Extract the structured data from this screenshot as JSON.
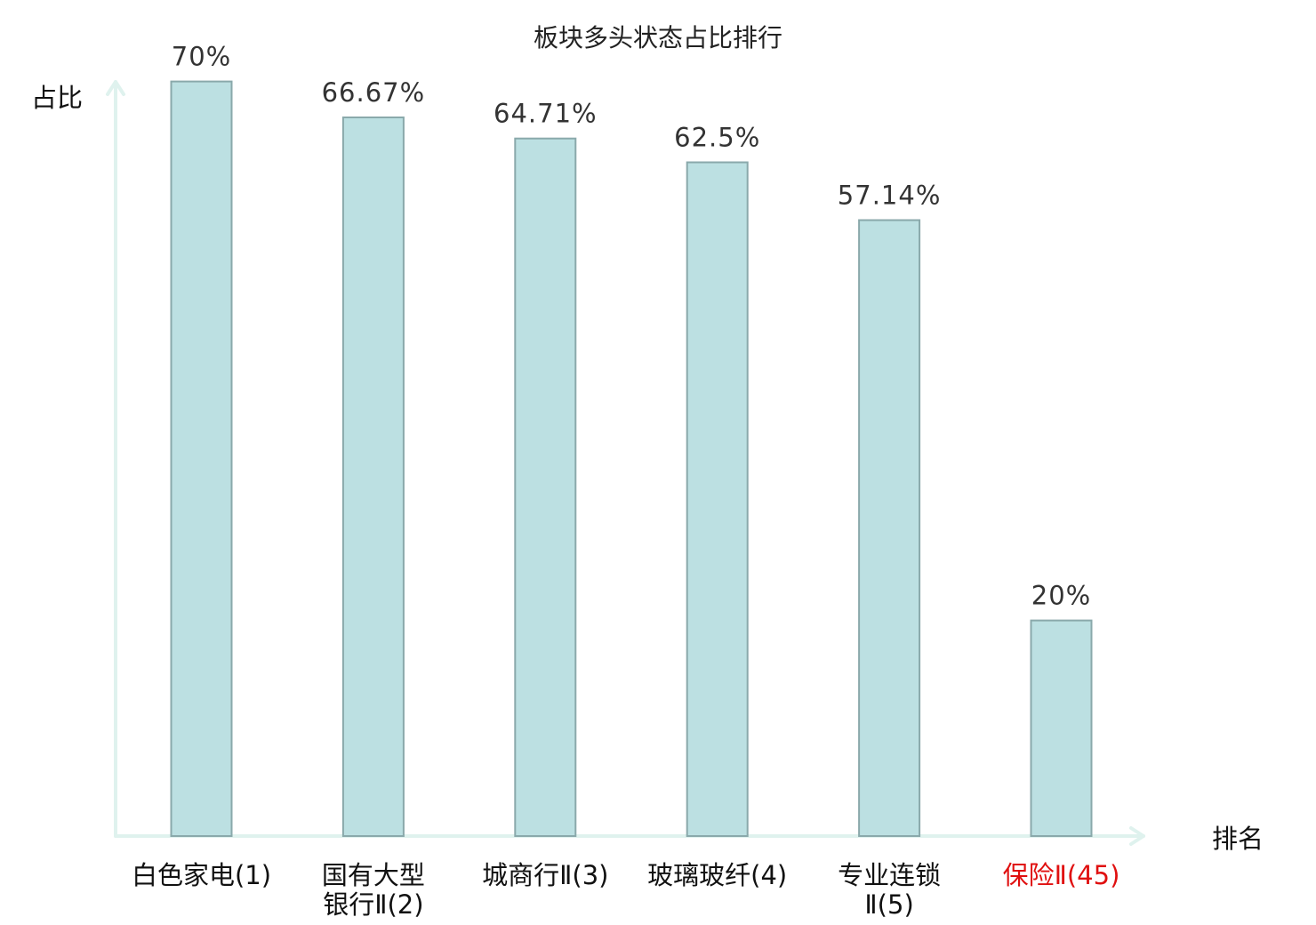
{
  "chart_data": {
    "type": "bar",
    "title": "板块多头状态占比排行",
    "ylabel": "占比",
    "xlabel": "排名",
    "ylim": [
      0,
      100
    ],
    "categories": [
      {
        "lines": [
          "白色家电(1)"
        ],
        "highlight": false
      },
      {
        "lines": [
          "国有大型",
          "银行Ⅱ(2)"
        ],
        "highlight": false
      },
      {
        "lines": [
          "城商行Ⅱ(3)"
        ],
        "highlight": false
      },
      {
        "lines": [
          "玻璃玻纤(4)"
        ],
        "highlight": false
      },
      {
        "lines": [
          "专业连锁",
          "Ⅱ(5)"
        ],
        "highlight": false
      },
      {
        "lines": [
          "保险Ⅱ(45)"
        ],
        "highlight": true
      }
    ],
    "values": [
      70,
      66.67,
      64.71,
      62.5,
      57.14,
      20
    ],
    "value_labels": [
      "70%",
      "66.67%",
      "64.71%",
      "62.5%",
      "57.14%",
      "20%"
    ],
    "grid": false,
    "colors": {
      "bar_fill": "#bce0e2",
      "bar_stroke": "#8aa9ab",
      "axis": "#dff2ee",
      "label": "#111111",
      "highlight_label": "#e01010"
    }
  }
}
